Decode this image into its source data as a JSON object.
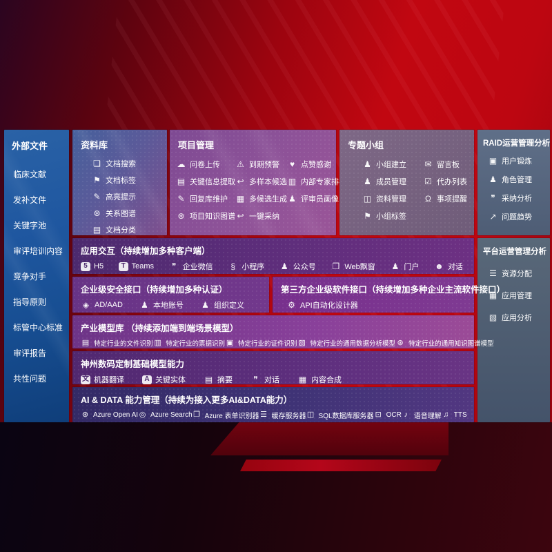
{
  "colors": {
    "background_red": "#b5050f",
    "sidebar_blue": "#1b53a0",
    "panel_purple": "#8a4f94",
    "panel_slate": "#5a6a84",
    "row_violet": "#5c2d7d",
    "row_indigo": "#3e3378",
    "text": "#ffffff"
  },
  "sidebar": {
    "title": "外部文件",
    "items": [
      {
        "label": "临床文献"
      },
      {
        "label": "发补文件"
      },
      {
        "label": "关键字池"
      },
      {
        "label": "审评培训内容"
      },
      {
        "label": "竞争对手"
      },
      {
        "label": "指导原则"
      },
      {
        "label": "标管中心标准"
      },
      {
        "label": "审评报告"
      },
      {
        "label": "共性问题"
      }
    ]
  },
  "datalib": {
    "title": "资料库",
    "items": [
      {
        "label": "文档搜索",
        "icon": "doc-search-icon",
        "glyph": "❏"
      },
      {
        "label": "文档标签",
        "icon": "doc-tag-icon",
        "glyph": "⚑"
      },
      {
        "label": "高亮提示",
        "icon": "highlight-pen-icon",
        "glyph": "✎"
      },
      {
        "label": "关系图谱",
        "icon": "relation-graph-icon",
        "glyph": "⊛"
      },
      {
        "label": "文档分类",
        "icon": "doc-classify-icon",
        "glyph": "▤"
      }
    ]
  },
  "project": {
    "title": "项目管理",
    "col1": [
      {
        "label": "问卷上传",
        "icon": "cloud-upload-icon",
        "glyph": "☁"
      },
      {
        "label": "关键信息提取",
        "icon": "key-info-extract-icon",
        "glyph": "▤"
      },
      {
        "label": "回复库维护",
        "icon": "reply-edit-icon",
        "glyph": "✎"
      },
      {
        "label": "项目知识图谱",
        "icon": "knowledge-graph-icon",
        "glyph": "⊛"
      }
    ],
    "col2": [
      {
        "label": "到期预警",
        "icon": "alarm-icon",
        "glyph": "⚠"
      },
      {
        "label": "多样本候选",
        "icon": "multi-sample-icon",
        "glyph": "↩"
      },
      {
        "label": "多候选生成",
        "icon": "multi-candidate-icon",
        "glyph": "▦"
      },
      {
        "label": "一键采纳",
        "icon": "one-click-adopt-icon",
        "glyph": "↩"
      }
    ],
    "col3": [
      {
        "label": "点赞感谢",
        "icon": "thumbs-up-icon",
        "glyph": "♥"
      },
      {
        "label": "内部专家排名",
        "icon": "expert-ranking-icon",
        "glyph": "▥"
      },
      {
        "label": "评审员画像",
        "icon": "reviewer-profile-icon",
        "glyph": "♟"
      }
    ]
  },
  "groups": {
    "title": "专题小组",
    "col1": [
      {
        "label": "小组建立",
        "icon": "group-create-icon",
        "glyph": "♟"
      },
      {
        "label": "成员管理",
        "icon": "member-manage-icon",
        "glyph": "♟"
      },
      {
        "label": "资料管理",
        "icon": "material-manage-icon",
        "glyph": "◫"
      },
      {
        "label": "小组标签",
        "icon": "group-tag-icon",
        "glyph": "⚑"
      }
    ],
    "col2": [
      {
        "label": "留言板",
        "icon": "message-board-icon",
        "glyph": "✉"
      },
      {
        "label": "代办列表",
        "icon": "todo-list-icon",
        "glyph": "☑"
      },
      {
        "label": "事项提醒",
        "icon": "reminder-bell-icon",
        "glyph": "Ω"
      }
    ]
  },
  "raid": {
    "title": "RAID运营管理分析",
    "items": [
      {
        "label": "用户锻炼",
        "icon": "user-card-icon",
        "glyph": "▣"
      },
      {
        "label": "角色管理",
        "icon": "role-manage-icon",
        "glyph": "♟"
      },
      {
        "label": "采纳分析",
        "icon": "adoption-analysis-icon",
        "glyph": "❞"
      },
      {
        "label": "问题趋势",
        "icon": "issue-trend-icon",
        "glyph": "↗"
      }
    ]
  },
  "platform": {
    "title": "平台运营管理分析",
    "items": [
      {
        "label": "资源分配",
        "icon": "resource-allocation-icon",
        "glyph": "☰"
      },
      {
        "label": "应用管理",
        "icon": "app-manage-icon",
        "glyph": "▦"
      },
      {
        "label": "应用分析",
        "icon": "app-analysis-icon",
        "glyph": "▧"
      }
    ]
  },
  "interaction": {
    "title": "应用交互（持续增加多种客户端）",
    "items": [
      {
        "label": "H5",
        "icon": "h5-icon",
        "glyph": "5",
        "boxed": true
      },
      {
        "label": "Teams",
        "icon": "teams-icon",
        "glyph": "T",
        "boxed": true
      },
      {
        "label": "企业微信",
        "icon": "wechat-work-icon",
        "glyph": "❞"
      },
      {
        "label": "小程序",
        "icon": "miniprogram-icon",
        "glyph": "§"
      },
      {
        "label": "公众号",
        "icon": "official-account-icon",
        "glyph": "♟"
      },
      {
        "label": "Web飘窗",
        "icon": "web-popup-icon",
        "glyph": "❐"
      },
      {
        "label": "门户",
        "icon": "portal-icon",
        "glyph": "♟"
      },
      {
        "label": "对话",
        "icon": "chat-icon",
        "glyph": "☻"
      }
    ]
  },
  "security": {
    "title": "企业级安全接口（持续增加多种认证）",
    "items": [
      {
        "label": "AD/AAD",
        "icon": "ad-aad-shield-icon",
        "glyph": "◈"
      },
      {
        "label": "本地账号",
        "icon": "local-account-icon",
        "glyph": "♟"
      },
      {
        "label": "组织定义",
        "icon": "org-definition-icon",
        "glyph": "♟"
      }
    ]
  },
  "thirdparty": {
    "title": "第三方企业级软件接口（持续增加多种企业主流软件接口）",
    "items": [
      {
        "label": "API自动化设计器",
        "icon": "api-designer-gear-icon",
        "glyph": "⚙"
      }
    ]
  },
  "industry": {
    "title": "产业模型库 （持续添加端到端场景模型）",
    "items": [
      {
        "label": "特定行业的文件识别",
        "icon": "industry-doc-recognition-icon",
        "glyph": "▤"
      },
      {
        "label": "特定行业的票据识别",
        "icon": "industry-receipt-recognition-icon",
        "glyph": "▥"
      },
      {
        "label": "特定行业的证件识别",
        "icon": "industry-id-recognition-icon",
        "glyph": "▣"
      },
      {
        "label": "特定行业的通用数据分析模型",
        "icon": "industry-data-analysis-icon",
        "glyph": "▧"
      },
      {
        "label": "特定行业的通用知识图谱模型",
        "icon": "industry-knowledge-graph-icon",
        "glyph": "⊛"
      }
    ]
  },
  "dcmodels": {
    "title": "神州数码定制基础模型能力",
    "items": [
      {
        "label": "机器翻译",
        "icon": "machine-translation-icon",
        "glyph": "文",
        "boxed": true
      },
      {
        "label": "关键实体",
        "icon": "key-entity-icon",
        "glyph": "A",
        "boxed": true
      },
      {
        "label": "摘要",
        "icon": "summary-icon",
        "glyph": "▤"
      },
      {
        "label": "对话",
        "icon": "dialog-icon",
        "glyph": "❞"
      },
      {
        "label": "内容合成",
        "icon": "content-synthesis-icon",
        "glyph": "▦"
      }
    ]
  },
  "aidata": {
    "title": "AI & DATA 能力管理（持续为接入更多AI&DATA能力）",
    "items": [
      {
        "label": "Azure Open AI",
        "icon": "openai-icon",
        "glyph": "⊛"
      },
      {
        "label": "Azure Search",
        "icon": "azure-search-icon",
        "glyph": "◎"
      },
      {
        "label": "Azure 表单识别器",
        "icon": "form-recognizer-icon",
        "glyph": "❐"
      },
      {
        "label": "缓存服务器",
        "icon": "cache-server-icon",
        "glyph": "☰"
      },
      {
        "label": "SQL数据库服务器",
        "icon": "sql-server-icon",
        "glyph": "◫"
      },
      {
        "label": "OCR",
        "icon": "ocr-icon",
        "glyph": "⊡"
      },
      {
        "label": "语音理解",
        "icon": "speech-understanding-icon",
        "glyph": "♪"
      },
      {
        "label": "TTS",
        "icon": "tts-icon",
        "glyph": "♫"
      }
    ]
  }
}
